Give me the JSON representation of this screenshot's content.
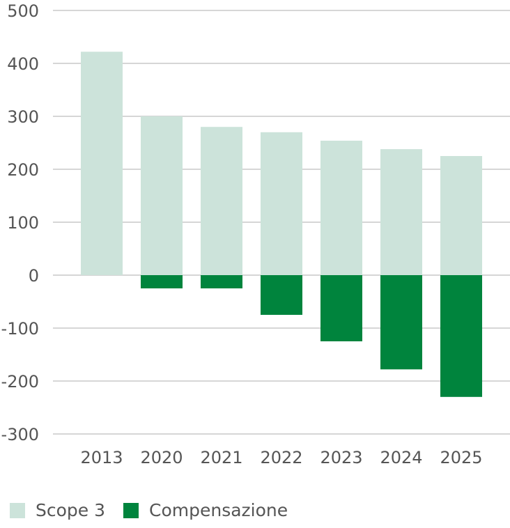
{
  "chart_data": {
    "type": "bar",
    "stacked": true,
    "categories": [
      "2013",
      "2020",
      "2021",
      "2022",
      "2023",
      "2024",
      "2025"
    ],
    "series": [
      {
        "name": "Scope 3",
        "color": "#cce3da",
        "values": [
          422,
          300,
          280,
          270,
          254,
          238,
          225
        ]
      },
      {
        "name": "Compensazione",
        "color": "#00843d",
        "values": [
          0,
          -25,
          -25,
          -75,
          -125,
          -178,
          -230
        ]
      }
    ],
    "ylim": [
      -300,
      500
    ],
    "yticks": [
      500,
      400,
      300,
      200,
      100,
      0,
      -100,
      -200,
      -300
    ],
    "grid": true,
    "gridline_color": "#c8c8c8",
    "legend_position": "bottom-left",
    "title": "",
    "xlabel": "",
    "ylabel": ""
  }
}
